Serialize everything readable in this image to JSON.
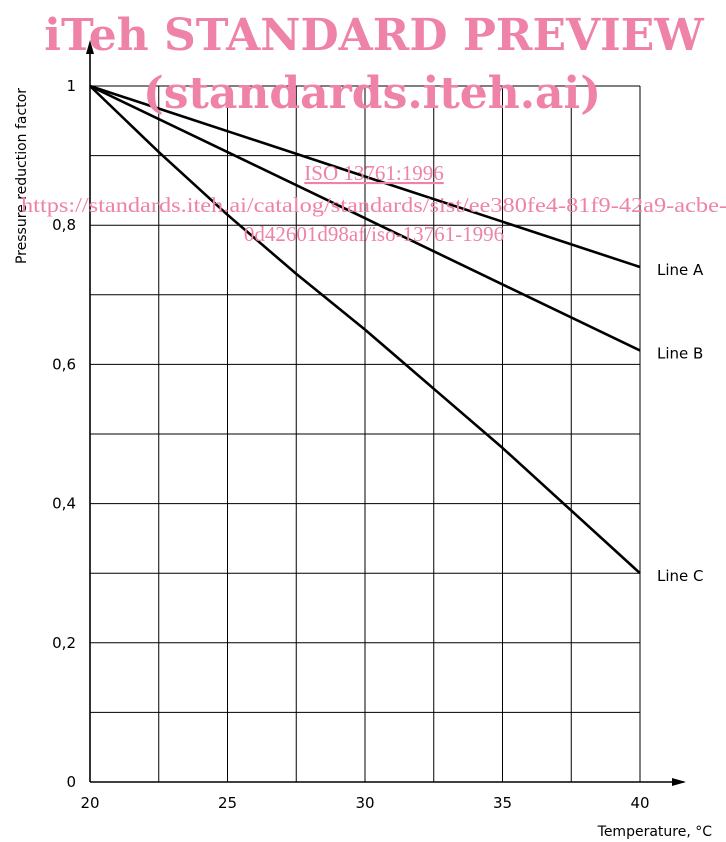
{
  "watermark": {
    "line1": "iTeh STANDARD PREVIEW",
    "line2": "(standards.iteh.ai)",
    "line3": "ISO 13761:1996",
    "line4": "https://standards.iteh.ai/catalog/standards/sist/ee380fe4-81f9-42a9-acbe-",
    "line5": "0d42601d98af/iso-13761-1996",
    "color": "#ee82a8"
  },
  "chart_data": {
    "type": "line",
    "xlabel": "Temperature, °C",
    "ylabel": "Pressure reduction factor",
    "xlim": [
      20,
      40
    ],
    "ylim": [
      0,
      1
    ],
    "x_ticks": [
      20,
      25,
      30,
      35,
      40
    ],
    "x_tick_labels": [
      "20",
      "25",
      "30",
      "35",
      "40"
    ],
    "y_ticks": [
      0,
      0.2,
      0.4,
      0.6,
      0.8,
      1
    ],
    "y_tick_labels": [
      "0",
      "0,2",
      "0,4",
      "0,6",
      "0,8",
      "1"
    ],
    "grid": true,
    "x_grid": [
      20,
      22.5,
      25,
      27.5,
      30,
      32.5,
      35,
      37.5,
      40
    ],
    "y_grid": [
      0,
      0.1,
      0.2,
      0.3,
      0.4,
      0.5,
      0.6,
      0.7,
      0.8,
      0.9,
      1
    ],
    "series": [
      {
        "name": "Line A",
        "x": [
          20,
          25,
          30,
          35,
          40
        ],
        "y": [
          1,
          0.935,
          0.87,
          0.805,
          0.74
        ]
      },
      {
        "name": "Line B",
        "x": [
          20,
          25,
          30,
          35,
          40
        ],
        "y": [
          1,
          0.905,
          0.81,
          0.715,
          0.62
        ]
      },
      {
        "name": "Line C",
        "x": [
          20,
          22.5,
          25,
          27.5,
          30,
          32.5,
          35,
          37.5,
          40
        ],
        "y": [
          1,
          0.905,
          0.815,
          0.73,
          0.65,
          0.565,
          0.48,
          0.39,
          0.3
        ]
      }
    ]
  }
}
